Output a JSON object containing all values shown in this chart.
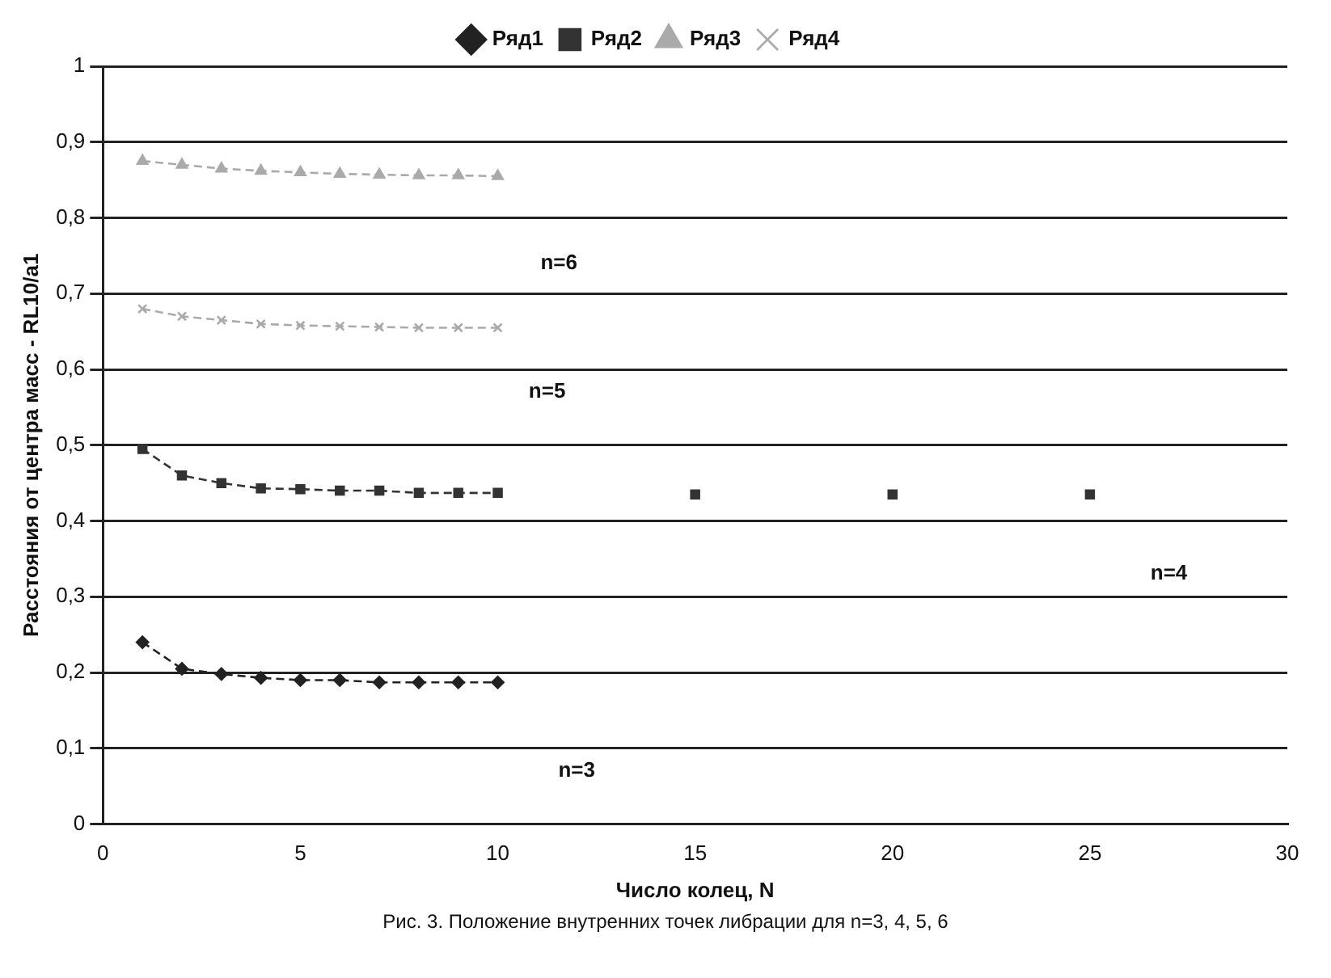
{
  "chart_data": {
    "type": "line",
    "xlabel": "Число колец, N",
    "ylabel": "Расстояния от центра масс - RL10/a1",
    "x": [
      1,
      2,
      3,
      4,
      5,
      6,
      7,
      8,
      9,
      10
    ],
    "series": [
      {
        "name": "Ряд1",
        "color": "#222222",
        "marker": "diamond",
        "values": [
          0.24,
          0.205,
          0.198,
          0.193,
          0.19,
          0.19,
          0.187,
          0.187,
          0.187,
          0.187
        ]
      },
      {
        "name": "Ряд2",
        "color": "#333333",
        "marker": "square",
        "values": [
          0.495,
          0.46,
          0.45,
          0.443,
          0.442,
          0.44,
          0.44,
          0.437,
          0.437,
          0.437
        ]
      },
      {
        "type": "scatter",
        "color": "#333333",
        "marker": "square",
        "x": [
          15,
          20,
          25
        ],
        "values": [
          0.435,
          0.435,
          0.435
        ]
      },
      {
        "name": "Ряд3",
        "color": "#aaaaaa",
        "marker": "triangle",
        "values": [
          0.875,
          0.87,
          0.865,
          0.862,
          0.86,
          0.858,
          0.857,
          0.856,
          0.856,
          0.855
        ]
      },
      {
        "name": "Ряд4",
        "color": "#aaaaaa",
        "marker": "cross",
        "values": [
          0.68,
          0.67,
          0.665,
          0.66,
          0.658,
          0.657,
          0.656,
          0.655,
          0.655,
          0.655
        ]
      }
    ],
    "xlim": [
      0,
      30
    ],
    "xticks": [
      0,
      5,
      10,
      15,
      20,
      25,
      30
    ],
    "ylim": [
      0,
      1
    ],
    "yticks": [
      0,
      {
        "value": 0.1,
        "label": "0,1"
      },
      {
        "value": 0.2,
        "label": "0,2"
      },
      {
        "value": 0.3,
        "label": "0,3"
      },
      {
        "value": 0.4,
        "label": "0,4"
      },
      {
        "value": 0.5,
        "label": "0,5"
      },
      {
        "value": 0.6,
        "label": "0,6"
      },
      {
        "value": 0.7,
        "label": "0,7"
      },
      {
        "value": 0.8,
        "label": "0,8"
      },
      {
        "value": 0.9,
        "label": "0,9"
      },
      1
    ],
    "grid": "y",
    "legend": "top",
    "line_style": "dashed",
    "annotations": [
      "n=6",
      "n=5",
      "n=4",
      "n=3",
      "Рис. 3. Положение внутренних точек либрации для n=3, 4, 5, 6"
    ]
  }
}
